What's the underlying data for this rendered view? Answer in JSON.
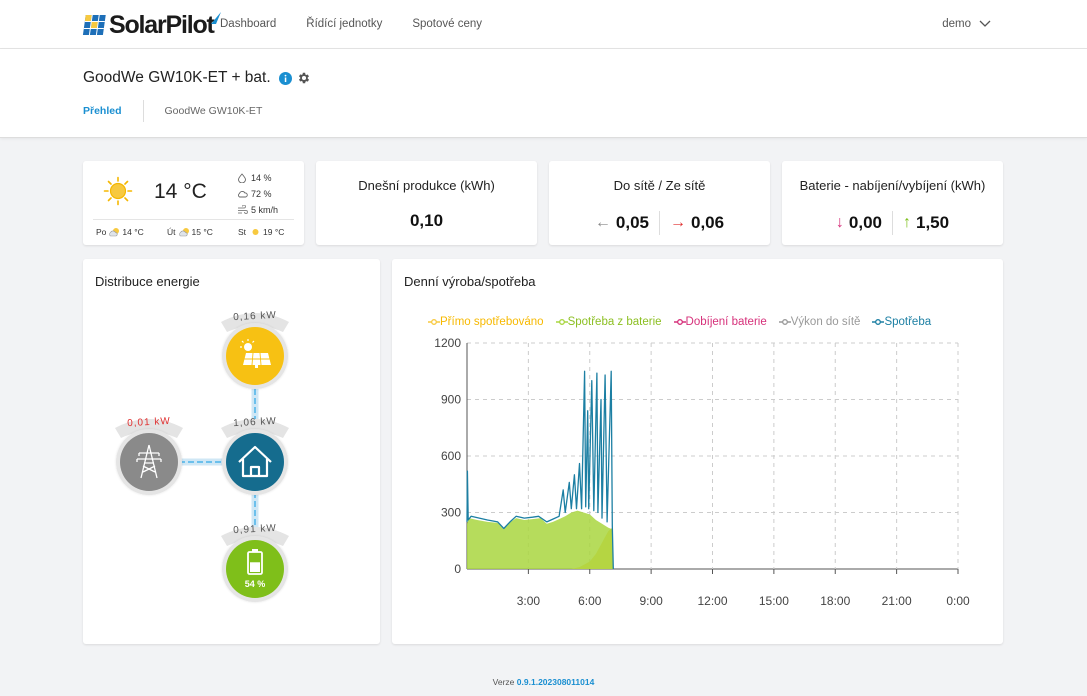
{
  "app": {
    "brand": "SolarPilot"
  },
  "nav": {
    "items": [
      "Dashboard",
      "Řídící jednotky",
      "Spotové ceny"
    ],
    "user": "demo"
  },
  "device": {
    "title": "GoodWe GW10K-ET + bat.",
    "tabs": {
      "active": "Přehled",
      "other": "GoodWe GW10K-ET"
    }
  },
  "weather": {
    "temp": "14 °C",
    "humidity": "14 %",
    "clouds": "72 %",
    "wind": "5 km/h",
    "forecast": [
      {
        "day": "Po",
        "temp": "14 °C",
        "icon": "partly-cloudy-icon"
      },
      {
        "day": "Út",
        "temp": "15 °C",
        "icon": "partly-cloudy-icon"
      },
      {
        "day": "St",
        "temp": "19 °C",
        "icon": "sun-icon"
      }
    ]
  },
  "stats": {
    "production": {
      "title": "Dnešní produkce (kWh)",
      "value": "0,10"
    },
    "grid": {
      "title": "Do sítě / Ze sítě",
      "export": "0,05",
      "import": "0,06"
    },
    "battery": {
      "title": "Baterie - nabíjení/vybíjení (kWh)",
      "charge": "0,00",
      "discharge": "1,50"
    }
  },
  "distribution": {
    "title": "Distribuce energie",
    "solar": "0,16 kW",
    "grid": "0,01 kW",
    "home": "1,06 kW",
    "battery": "0,91 kW",
    "battery_soc": "54 %",
    "battery_soc_value": 54
  },
  "chart": {
    "title": "Denní výroba/spotřeba"
  },
  "chart_data": {
    "type": "area",
    "x_ticks": [
      "3:00",
      "6:00",
      "9:00",
      "12:00",
      "15:00",
      "18:00",
      "21:00",
      "0:00"
    ],
    "y_ticks": [
      "0",
      "300",
      "600",
      "900",
      "1200"
    ],
    "ylim": [
      0,
      1200
    ],
    "xlim_hours": [
      0,
      24
    ],
    "grid": true,
    "legend_position": "top",
    "colors": {
      "direct": "#f7c940",
      "from_battery": "#a9d63f",
      "battery_charge": "#d6307a",
      "to_grid": "#999999",
      "consumption": "#1c7fa3"
    },
    "series": [
      {
        "name": "Přímo spotřebováno",
        "key": "direct",
        "points": [
          [
            0,
            0
          ],
          [
            5.1,
            0
          ],
          [
            5.5,
            10
          ],
          [
            6.0,
            40
          ],
          [
            6.3,
            80
          ],
          [
            6.6,
            140
          ],
          [
            6.9,
            200
          ],
          [
            7.1,
            220
          ],
          [
            7.15,
            0
          ]
        ]
      },
      {
        "name": "Spotřeba z baterie",
        "key": "from_battery",
        "points": [
          [
            0,
            240
          ],
          [
            0.1,
            270
          ],
          [
            0.5,
            260
          ],
          [
            1.0,
            250
          ],
          [
            1.5,
            245
          ],
          [
            1.8,
            210
          ],
          [
            2.0,
            240
          ],
          [
            2.4,
            270
          ],
          [
            2.8,
            260
          ],
          [
            3.2,
            265
          ],
          [
            3.6,
            270
          ],
          [
            3.9,
            240
          ],
          [
            4.2,
            250
          ],
          [
            4.5,
            265
          ],
          [
            4.8,
            280
          ],
          [
            5.1,
            300
          ],
          [
            5.4,
            310
          ],
          [
            5.7,
            300
          ],
          [
            6.0,
            290
          ],
          [
            6.3,
            260
          ],
          [
            6.6,
            240
          ],
          [
            6.9,
            220
          ],
          [
            7.1,
            210
          ],
          [
            7.15,
            0
          ]
        ]
      },
      {
        "name": "Dobíjení baterie",
        "key": "battery_charge",
        "points": []
      },
      {
        "name": "Výkon do sítě",
        "key": "to_grid",
        "points": []
      },
      {
        "name": "Spotřeba",
        "key": "consumption",
        "points": [
          [
            0,
            250
          ],
          [
            0.02,
            520
          ],
          [
            0.06,
            260
          ],
          [
            0.2,
            280
          ],
          [
            0.6,
            270
          ],
          [
            1.0,
            260
          ],
          [
            1.5,
            250
          ],
          [
            1.8,
            215
          ],
          [
            2.1,
            250
          ],
          [
            2.4,
            280
          ],
          [
            2.8,
            270
          ],
          [
            3.2,
            275
          ],
          [
            3.5,
            280
          ],
          [
            3.9,
            250
          ],
          [
            4.2,
            265
          ],
          [
            4.5,
            280
          ],
          [
            4.7,
            420
          ],
          [
            4.8,
            300
          ],
          [
            5.0,
            460
          ],
          [
            5.1,
            320
          ],
          [
            5.25,
            500
          ],
          [
            5.35,
            320
          ],
          [
            5.5,
            560
          ],
          [
            5.6,
            320
          ],
          [
            5.75,
            1050
          ],
          [
            5.8,
            330
          ],
          [
            5.9,
            840
          ],
          [
            5.95,
            320
          ],
          [
            6.1,
            1000
          ],
          [
            6.2,
            310
          ],
          [
            6.35,
            1040
          ],
          [
            6.4,
            300
          ],
          [
            6.55,
            900
          ],
          [
            6.6,
            270
          ],
          [
            6.75,
            1030
          ],
          [
            6.85,
            250
          ],
          [
            7.05,
            1050
          ],
          [
            7.1,
            230
          ],
          [
            7.15,
            0
          ]
        ]
      }
    ]
  },
  "footer": {
    "label": "Verze",
    "version": "0.9.1.202308011014"
  }
}
